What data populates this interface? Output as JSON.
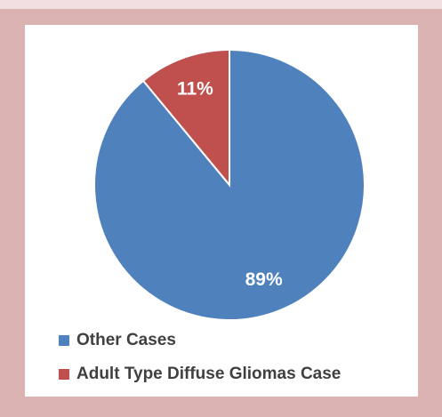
{
  "chart_data": {
    "type": "pie",
    "categories": [
      "Other Cases",
      "Adult Type Diffuse Gliomas Case"
    ],
    "values": [
      89,
      11
    ],
    "value_labels": [
      "89%",
      "11%"
    ],
    "colors": [
      "#4f81bd",
      "#c0504d"
    ],
    "legend": "bottom-left"
  }
}
